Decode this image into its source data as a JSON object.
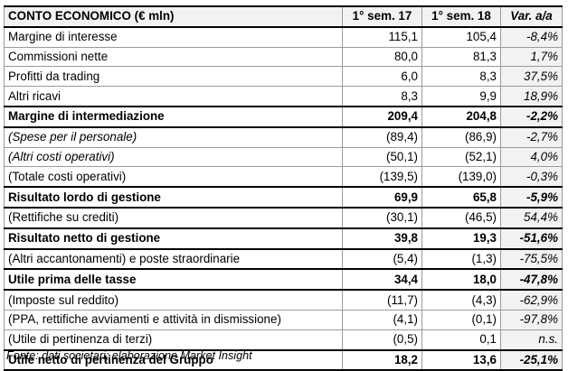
{
  "table": {
    "headers": [
      "CONTO ECONOMICO (€ mln)",
      "1° sem. 17",
      "1° sem. 18",
      "Var. a/a"
    ],
    "rows": [
      {
        "label": "Margine di interesse",
        "v17": "115,1",
        "v18": "105,4",
        "var": "-8,4%",
        "style": "normal"
      },
      {
        "label": "Commissioni nette",
        "v17": "80,0",
        "v18": "81,3",
        "var": "1,7%",
        "style": "normal"
      },
      {
        "label": "Profitti da trading",
        "v17": "6,0",
        "v18": "8,3",
        "var": "37,5%",
        "style": "normal"
      },
      {
        "label": "Altri ricavi",
        "v17": "8,3",
        "v18": "9,9",
        "var": "18,9%",
        "style": "normal"
      },
      {
        "label": "Margine di intermediazione",
        "v17": "209,4",
        "v18": "204,8",
        "var": "-2,2%",
        "style": "bold"
      },
      {
        "label": "(Spese per il personale)",
        "v17": "(89,4)",
        "v18": "(86,9)",
        "var": "-2,7%",
        "style": "italic"
      },
      {
        "label": "(Altri costi operativi)",
        "v17": "(50,1)",
        "v18": "(52,1)",
        "var": "4,0%",
        "style": "italic"
      },
      {
        "label": "(Totale costi operativi)",
        "v17": "(139,5)",
        "v18": "(139,0)",
        "var": "-0,3%",
        "style": "normal"
      },
      {
        "label": "Risultato lordo di gestione",
        "v17": "69,9",
        "v18": "65,8",
        "var": "-5,9%",
        "style": "bold"
      },
      {
        "label": "(Rettifiche su crediti)",
        "v17": "(30,1)",
        "v18": "(46,5)",
        "var": "54,4%",
        "style": "normal"
      },
      {
        "label": "Risultato netto di gestione",
        "v17": "39,8",
        "v18": "19,3",
        "var": "-51,6%",
        "style": "bold"
      },
      {
        "label": "(Altri accantonamenti) e poste straordinarie",
        "v17": "(5,4)",
        "v18": "(1,3)",
        "var": "-75,5%",
        "style": "normal"
      },
      {
        "label": "Utile prima delle tasse",
        "v17": "34,4",
        "v18": "18,0",
        "var": "-47,8%",
        "style": "bold"
      },
      {
        "label": "(Imposte sul reddito)",
        "v17": "(11,7)",
        "v18": "(4,3)",
        "var": "-62,9%",
        "style": "normal"
      },
      {
        "label": "(PPA, rettifiche avviamenti e attività in dismissione)",
        "v17": "(4,1)",
        "v18": "(0,1)",
        "var": "-97,8%",
        "style": "normal"
      },
      {
        "label": "(Utile di pertinenza di terzi)",
        "v17": "(0,5)",
        "v18": "0,1",
        "var": "n.s.",
        "style": "normal"
      },
      {
        "label": "Utile netto di pertinenza del Gruppo",
        "v17": "18,2",
        "v18": "13,6",
        "var": "-25,1%",
        "style": "bold"
      }
    ]
  },
  "footnote": "Fonte: dati societari; elaborazione Market Insight"
}
